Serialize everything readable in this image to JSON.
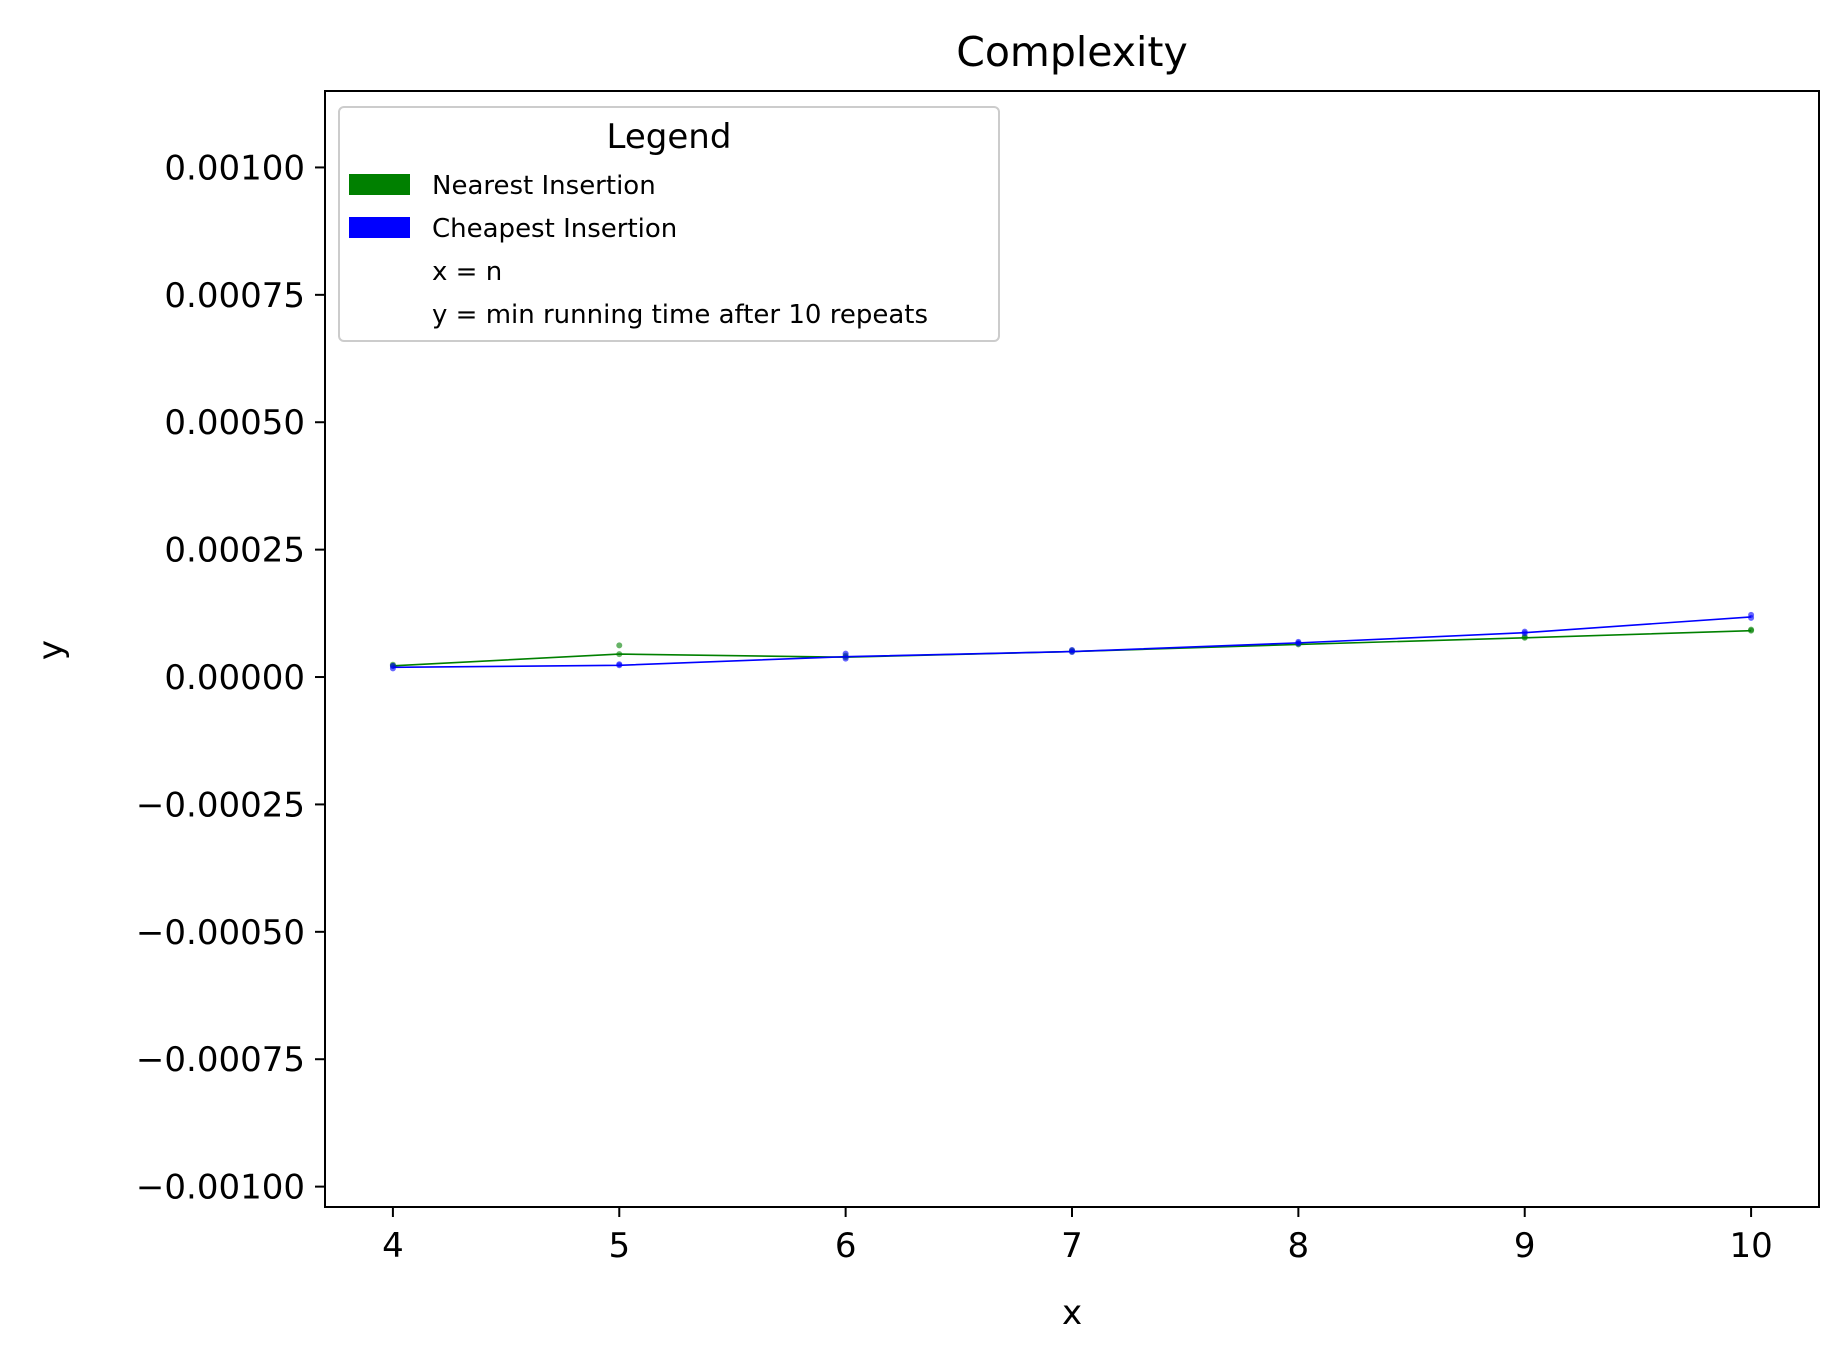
{
  "chart_data": {
    "type": "line",
    "title": "Complexity",
    "xlabel": "x",
    "ylabel": "y",
    "xlim": [
      3.7,
      10.3
    ],
    "ylim": [
      -0.00104,
      0.00115
    ],
    "x_ticks": [
      4,
      5,
      6,
      7,
      8,
      9,
      10
    ],
    "x_tick_labels": [
      "4",
      "5",
      "6",
      "7",
      "8",
      "9",
      "10"
    ],
    "y_ticks": [
      0.001,
      0.00075,
      0.0005,
      0.00025,
      0.0,
      -0.00025,
      -0.0005,
      -0.00075,
      -0.001
    ],
    "y_tick_labels": [
      "0.00100",
      "0.00075",
      "0.00050",
      "0.00025",
      "0.00000",
      "−0.00025",
      "−0.00050",
      "−0.00075",
      "−0.00100"
    ],
    "grid": false,
    "legend": {
      "title": "Legend",
      "position": "top-left",
      "entries": [
        {
          "label": "Nearest Insertion",
          "color": "#008000",
          "swatch": true
        },
        {
          "label": "Cheapest Insertion",
          "color": "#0000ff",
          "swatch": true
        },
        {
          "label": "x = n",
          "swatch": false
        },
        {
          "label": "y = min running time after 10 repeats",
          "swatch": false
        }
      ]
    },
    "series": [
      {
        "name": "Nearest Insertion",
        "color": "#008000",
        "x": [
          4,
          5,
          6,
          7,
          8,
          9,
          10
        ],
        "y": [
          2.2e-05,
          4.5e-05,
          3.9e-05,
          5e-05,
          6.4e-05,
          7.7e-05,
          9.1e-05
        ],
        "scatter_x": [
          4,
          4,
          5,
          5,
          6,
          6,
          7,
          7,
          8,
          8,
          9,
          9,
          10,
          10
        ],
        "scatter_y": [
          2.2e-05,
          2.4e-05,
          4.5e-05,
          6.2e-05,
          3.9e-05,
          4.2e-05,
          5e-05,
          5.2e-05,
          6.4e-05,
          6.6e-05,
          7.7e-05,
          7.9e-05,
          9.1e-05,
          9.3e-05
        ]
      },
      {
        "name": "Cheapest Insertion",
        "color": "#0000ff",
        "x": [
          4,
          5,
          6,
          7,
          8,
          9,
          10
        ],
        "y": [
          1.9e-05,
          2.3e-05,
          4e-05,
          5e-05,
          6.7e-05,
          8.7e-05,
          0.000118
        ],
        "scatter_x": [
          4,
          4,
          5,
          5,
          6,
          6,
          7,
          7,
          8,
          8,
          9,
          9,
          10,
          10
        ],
        "scatter_y": [
          1.7e-05,
          2.2e-05,
          2.3e-05,
          2.5e-05,
          3.6e-05,
          4.6e-05,
          4.9e-05,
          5.3e-05,
          6.6e-05,
          6.9e-05,
          8.6e-05,
          8.9e-05,
          0.000116,
          0.000122
        ]
      }
    ]
  }
}
